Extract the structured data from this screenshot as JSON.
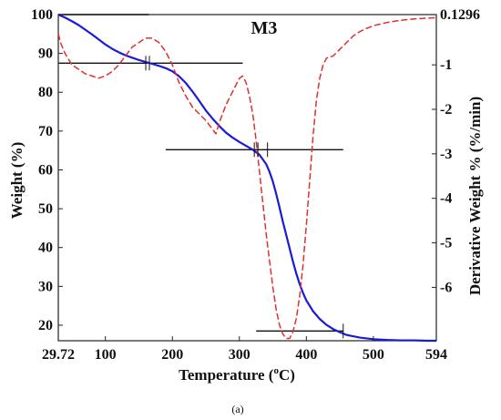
{
  "chart_data": {
    "type": "line",
    "title": "M3",
    "xlabel": "Temperature (°C)",
    "ylabel": "Weight (%)",
    "y2label": "Derivative Weight % (%/min)",
    "caption": "(a)",
    "xlim": [
      29.72,
      594
    ],
    "ylim": [
      16,
      100
    ],
    "y2lim": [
      -7.2,
      0.1296
    ],
    "x_ticks": [
      {
        "value": 29.72,
        "label": "29.72"
      },
      {
        "value": 100,
        "label": "100"
      },
      {
        "value": 200,
        "label": "200"
      },
      {
        "value": 300,
        "label": "300"
      },
      {
        "value": 400,
        "label": "400"
      },
      {
        "value": 500,
        "label": "500"
      },
      {
        "value": 594,
        "label": "594"
      }
    ],
    "y_ticks": [
      {
        "value": 100,
        "label": "100"
      },
      {
        "value": 90,
        "label": "90"
      },
      {
        "value": 80,
        "label": "80"
      },
      {
        "value": 70,
        "label": "70"
      },
      {
        "value": 60,
        "label": "60"
      },
      {
        "value": 50,
        "label": "50"
      },
      {
        "value": 40,
        "label": "40"
      },
      {
        "value": 30,
        "label": "30"
      },
      {
        "value": 20,
        "label": "20"
      }
    ],
    "y2_ticks": [
      {
        "value": 0.1296,
        "label": "0.1296"
      },
      {
        "value": -1,
        "label": "-1"
      },
      {
        "value": -2,
        "label": "-2"
      },
      {
        "value": -3,
        "label": "-3"
      },
      {
        "value": -4,
        "label": "-4"
      },
      {
        "value": -5,
        "label": "-5"
      },
      {
        "value": -6,
        "label": "-6"
      }
    ],
    "series": [
      {
        "axis": "left",
        "color": "#1a1adb",
        "style": "solid",
        "x": [
          29.72,
          40,
          50,
          60,
          70,
          80,
          90,
          100,
          110,
          120,
          130,
          140,
          150,
          160,
          170,
          180,
          190,
          200,
          210,
          220,
          230,
          240,
          250,
          260,
          270,
          280,
          290,
          300,
          310,
          320,
          330,
          340,
          345,
          350,
          355,
          360,
          365,
          370,
          375,
          380,
          385,
          390,
          395,
          400,
          410,
          420,
          430,
          440,
          450,
          460,
          480,
          500,
          520,
          540,
          560,
          580,
          594
        ],
        "y": [
          100,
          99.2,
          98.3,
          97.3,
          96.1,
          94.9,
          93.6,
          92.3,
          91.2,
          90.3,
          89.5,
          88.9,
          88.3,
          87.8,
          87.3,
          86.8,
          86.2,
          85.4,
          84.1,
          82.4,
          80.2,
          77.8,
          75.3,
          73.2,
          71.3,
          69.6,
          68.3,
          67.2,
          66.2,
          65.2,
          63.9,
          61.5,
          59.5,
          57.0,
          53.8,
          50.3,
          46.6,
          43.2,
          39.8,
          36.4,
          33.3,
          30.6,
          28.3,
          26.4,
          23.6,
          21.6,
          20.1,
          19.0,
          18.2,
          17.5,
          16.8,
          16.4,
          16.2,
          16.1,
          16.1,
          16.0,
          16.0
        ]
      },
      {
        "axis": "right",
        "color": "#e03030",
        "style": "dashed",
        "x": [
          29.72,
          33,
          40,
          50,
          60,
          70,
          80,
          90,
          100,
          110,
          120,
          130,
          140,
          150,
          160,
          170,
          180,
          190,
          200,
          210,
          220,
          230,
          240,
          250,
          260,
          265,
          270,
          275,
          280,
          290,
          300,
          305,
          310,
          315,
          320,
          325,
          330,
          335,
          340,
          345,
          350,
          355,
          360,
          365,
          370,
          375,
          380,
          385,
          390,
          395,
          400,
          405,
          410,
          415,
          420,
          425,
          430,
          440,
          450,
          460,
          470,
          480,
          490,
          500,
          520,
          540,
          560,
          580,
          594
        ],
        "y": [
          -0.3,
          -0.5,
          -0.75,
          -1.0,
          -1.1,
          -1.2,
          -1.25,
          -1.3,
          -1.25,
          -1.15,
          -1.0,
          -0.8,
          -0.6,
          -0.5,
          -0.4,
          -0.4,
          -0.5,
          -0.7,
          -1.0,
          -1.4,
          -1.7,
          -1.95,
          -2.1,
          -2.25,
          -2.45,
          -2.55,
          -2.3,
          -2.1,
          -1.9,
          -1.6,
          -1.3,
          -1.25,
          -1.4,
          -1.7,
          -2.1,
          -2.7,
          -3.4,
          -4.1,
          -4.8,
          -5.4,
          -6.0,
          -6.5,
          -6.85,
          -7.05,
          -7.15,
          -7.15,
          -7.0,
          -6.7,
          -6.2,
          -5.5,
          -4.6,
          -3.6,
          -2.6,
          -1.8,
          -1.3,
          -1.0,
          -0.85,
          -0.8,
          -0.65,
          -0.5,
          -0.35,
          -0.25,
          -0.18,
          -0.12,
          -0.05,
          0.0,
          0.03,
          0.05,
          0.06
        ]
      }
    ],
    "reference_lines": [
      {
        "axis": "left",
        "y": 100,
        "x_from": 29.72,
        "x_to": 165
      },
      {
        "axis": "left",
        "y": 87.5,
        "x_from": 29.72,
        "x_to": 305
      },
      {
        "axis": "left",
        "y": 65.2,
        "x_from": 190,
        "x_to": 455
      },
      {
        "axis": "left",
        "y": 18.5,
        "x_from": 325,
        "x_to": 455
      }
    ],
    "step_markers": [
      {
        "x": 163,
        "y": 87.5,
        "double": true
      },
      {
        "x": 325,
        "y": 65.2,
        "double": true
      },
      {
        "x": 342,
        "y": 65.2,
        "double": false
      },
      {
        "x": 455,
        "y": 18.5,
        "double": false
      }
    ]
  }
}
